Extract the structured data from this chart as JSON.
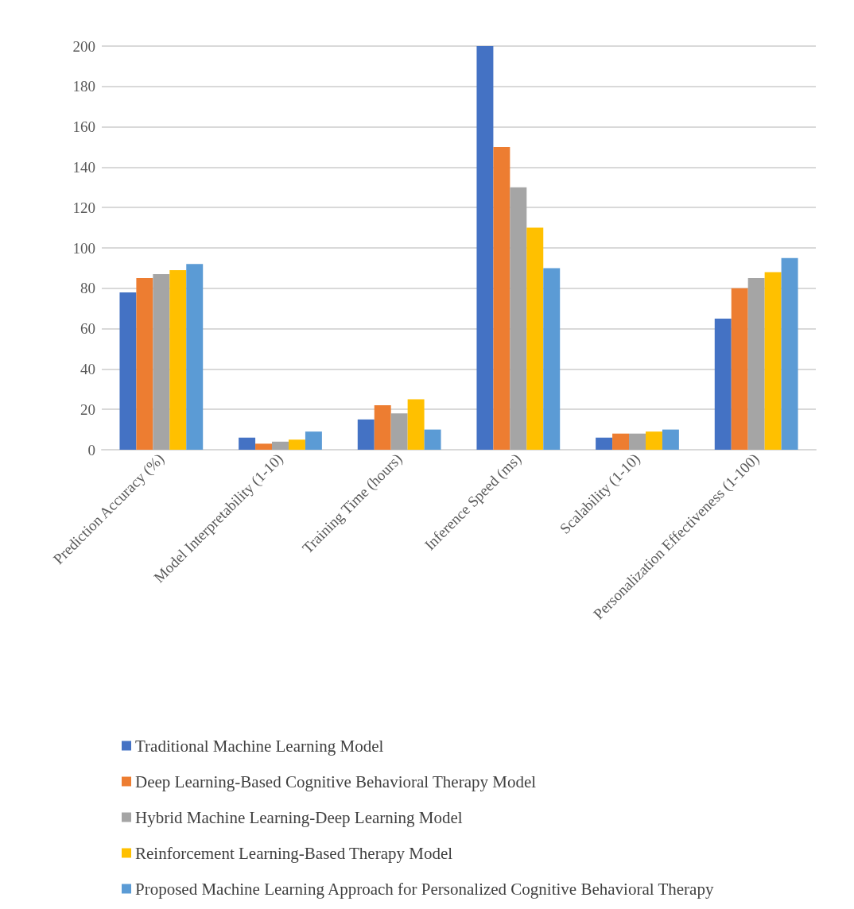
{
  "chart_data": {
    "type": "bar",
    "categories": [
      "Prediction Accuracy (%)",
      "Model Interpretability (1-10)",
      "Training Time (hours)",
      "Inference Speed (ms)",
      "Scalability (1-10)",
      "Personalization Effectiveness (1-100)"
    ],
    "series": [
      {
        "name": "Traditional Machine Learning Model",
        "color": "#4472c4",
        "values": [
          78,
          6,
          15,
          200,
          6,
          65
        ]
      },
      {
        "name": "Deep Learning-Based Cognitive Behavioral Therapy Model",
        "color": "#ed7d31",
        "values": [
          85,
          3,
          22,
          150,
          8,
          80
        ]
      },
      {
        "name": "Hybrid Machine Learning-Deep Learning Model",
        "color": "#a5a5a5",
        "values": [
          87,
          4,
          18,
          130,
          8,
          85
        ]
      },
      {
        "name": "Reinforcement Learning-Based Therapy Model",
        "color": "#ffc000",
        "values": [
          89,
          5,
          25,
          110,
          9,
          88
        ]
      },
      {
        "name": "Proposed Machine Learning Approach for Personalized Cognitive Behavioral Therapy",
        "color": "#5b9bd5",
        "values": [
          92,
          9,
          10,
          90,
          10,
          95
        ]
      }
    ],
    "ylim": [
      0,
      200
    ],
    "yticks": [
      0,
      20,
      40,
      60,
      80,
      100,
      120,
      140,
      160,
      180,
      200
    ],
    "grid": "y",
    "legend": "bottom"
  }
}
